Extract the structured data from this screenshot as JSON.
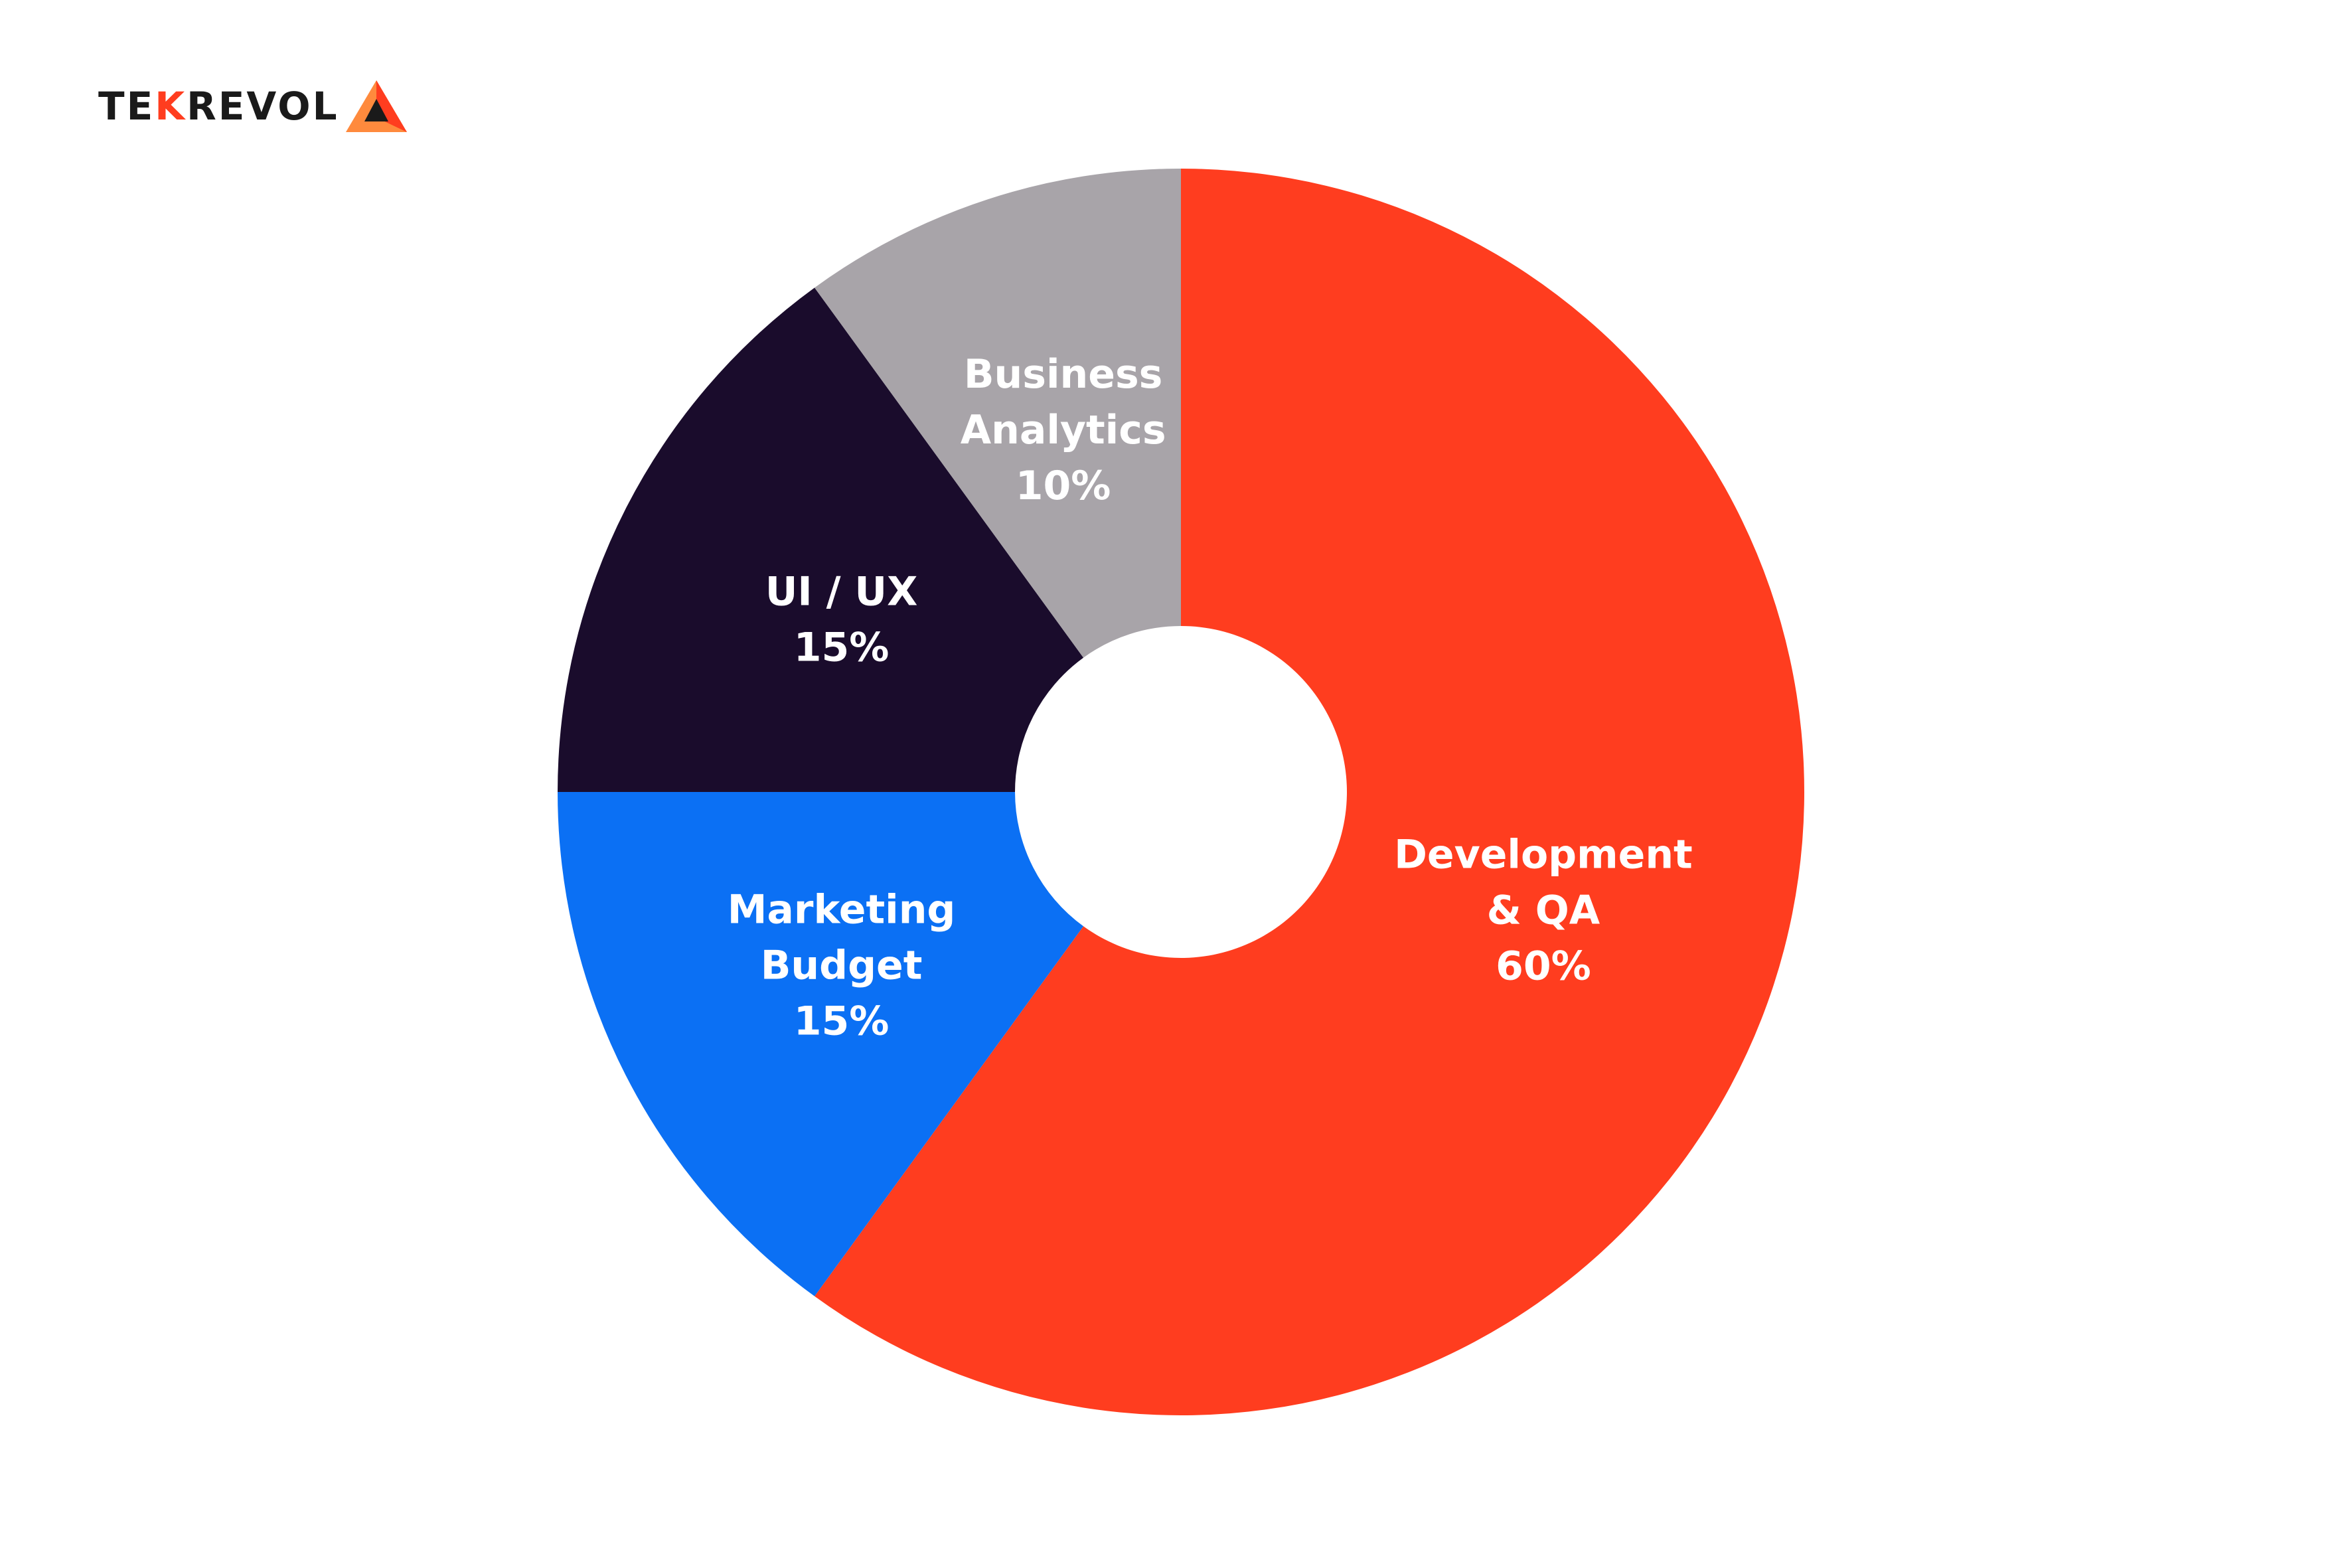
{
  "logo": {
    "text_start": "TE",
    "text_accent": "K",
    "text_end": "REVOL",
    "mark_icon": "triangle-logo-icon",
    "colors": {
      "dark": "#1a1a1a",
      "accent": "#ff3d1f",
      "accent_light": "#ff8a3d"
    }
  },
  "chart_data": {
    "type": "pie",
    "donut": true,
    "unit": "%",
    "legend": "none",
    "slices": [
      {
        "label_lines": [
          "Development",
          "& QA"
        ],
        "value_label": "60%",
        "value": 60,
        "color": "#ff3d1f"
      },
      {
        "label_lines": [
          "Marketing",
          "Budget"
        ],
        "value_label": "15%",
        "value": 15,
        "color": "#0b70f4"
      },
      {
        "label_lines": [
          "UI / UX"
        ],
        "value_label": "15%",
        "value": 15,
        "color": "#1a0c2c"
      },
      {
        "label_lines": [
          "Business",
          "Analytics"
        ],
        "value_label": "10%",
        "value": 10,
        "color": "#a8a4a9"
      }
    ]
  }
}
